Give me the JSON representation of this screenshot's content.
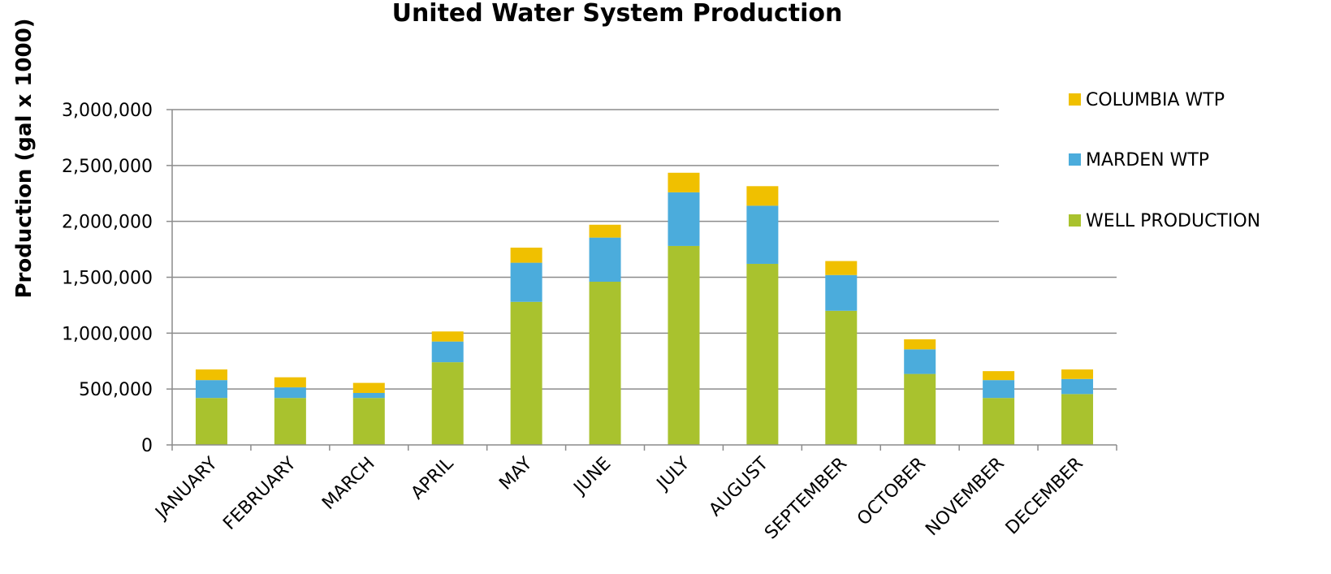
{
  "chart_data": {
    "type": "bar",
    "stacked": true,
    "title": "United Water System Production",
    "xlabel": "",
    "ylabel": "Production (gal x 1000)",
    "ylim": [
      0,
      3000000
    ],
    "yticks": [
      0,
      500000,
      1000000,
      1500000,
      2000000,
      2500000,
      3000000
    ],
    "ytick_labels": [
      "0",
      "500,000",
      "1,000,000",
      "1,500,000",
      "2,000,000",
      "2,500,000",
      "3,000,000"
    ],
    "grid": true,
    "legend_position": "right",
    "categories": [
      "JANUARY",
      "FEBRUARY",
      "MARCH",
      "APRIL",
      "MAY",
      "JUNE",
      "JULY",
      "AUGUST",
      "SEPTEMBER",
      "OCTOBER",
      "NOVEMBER",
      "DECEMBER"
    ],
    "series": [
      {
        "name": "WELL PRODUCTION",
        "color": "#a9c22e",
        "values": [
          420000,
          420000,
          420000,
          740000,
          1280000,
          1460000,
          1780000,
          1620000,
          1200000,
          635000,
          420000,
          455000
        ]
      },
      {
        "name": "MARDEN WTP",
        "color": "#4bacdc",
        "values": [
          160000,
          95000,
          45000,
          185000,
          350000,
          395000,
          480000,
          520000,
          320000,
          220000,
          160000,
          135000
        ]
      },
      {
        "name": "COLUMBIA WTP",
        "color": "#f0c000",
        "values": [
          95000,
          90000,
          90000,
          90000,
          135000,
          115000,
          175000,
          175000,
          125000,
          90000,
          80000,
          85000
        ]
      }
    ],
    "legend_order": [
      "COLUMBIA WTP",
      "MARDEN WTP",
      "WELL PRODUCTION"
    ]
  }
}
